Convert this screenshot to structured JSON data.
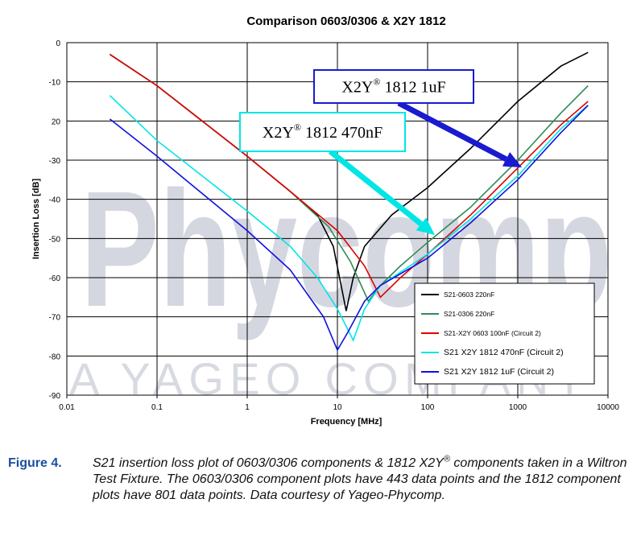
{
  "chart_data": {
    "type": "line",
    "title": "Comparison 0603/0306 &  X2Y 1812",
    "x_label": "Frequency [MHz]",
    "y_label": "Insertion Loss [dB]",
    "x_scale": "log",
    "xlim": [
      0.01,
      10000
    ],
    "xticks": [
      0.01,
      0.1,
      1,
      10,
      100,
      1000,
      10000
    ],
    "ylim": [
      -90,
      0
    ],
    "yticks": [
      0,
      -10,
      {
        "value": -20,
        "label": "20"
      },
      -30,
      -40,
      -50,
      -60,
      -70,
      -80,
      -90
    ],
    "grid": true,
    "legend_position": "lower right",
    "watermark_text": "Phycomp",
    "watermark_subtext": "A YAGEO COMPANY",
    "series": [
      {
        "name": "S21-0603 220nF",
        "color": "#000000",
        "x": [
          0.03,
          0.1,
          1,
          3,
          6,
          9,
          11,
          12.5,
          15,
          20,
          40,
          100,
          300,
          1000,
          3000,
          6000
        ],
        "values": [
          -3,
          -11,
          -29,
          -38,
          -44,
          -52,
          -62,
          -68.5,
          -60,
          -52,
          -44,
          -37,
          -27,
          -15,
          -6,
          -2.5
        ]
      },
      {
        "name": "S21-0306 220nF",
        "color": "#2e8b57",
        "x": [
          0.03,
          0.1,
          1,
          3,
          8,
          14,
          22,
          30,
          50,
          100,
          300,
          1000,
          3000,
          6000
        ],
        "values": [
          -3,
          -11,
          -29,
          -38,
          -47,
          -56,
          -66,
          -62,
          -57,
          -51,
          -42,
          -30,
          -18,
          -11
        ]
      },
      {
        "name": "S21-X2Y 0603 100nF (Circuit 2)",
        "color": "#e00000",
        "x": [
          0.03,
          0.1,
          1,
          3,
          10,
          20,
          30,
          50,
          100,
          300,
          1000,
          3000,
          6000
        ],
        "values": [
          -3,
          -11,
          -29,
          -38,
          -48,
          -57,
          -65,
          -60,
          -54,
          -44,
          -32,
          -21,
          -15
        ]
      },
      {
        "name": "S21 X2Y 1812 470nF (Circuit 2)",
        "color": "#00e5e5",
        "x": [
          0.03,
          0.1,
          1,
          3,
          6,
          10,
          15,
          20,
          30,
          100,
          300,
          1000,
          3000,
          6000
        ],
        "values": [
          -13.5,
          -25,
          -43,
          -52,
          -60,
          -68,
          -76,
          -68,
          -62,
          -54,
          -45,
          -34,
          -22,
          -16
        ]
      },
      {
        "name": "S21 X2Y 1812 1uF (Circuit 2)",
        "color": "#1010e0",
        "x": [
          0.03,
          0.1,
          1,
          3,
          7,
          10,
          13,
          20,
          30,
          100,
          300,
          1000,
          3000,
          6000
        ],
        "values": [
          -19.5,
          -29,
          -48,
          -58,
          -70,
          -78.5,
          -74,
          -66,
          -62,
          -55,
          -46,
          -35,
          -23,
          -16
        ]
      }
    ],
    "annotations": [
      {
        "prefix": "X2Y",
        "sup": "®",
        "suffix": " 1812 1uF"
      },
      {
        "prefix": "X2Y",
        "sup": "®",
        "suffix": " 1812 470nF"
      }
    ]
  },
  "caption": {
    "label": "Figure 4.",
    "text_before": "S21 insertion loss plot of 0603/0306 components & 1812 X2Y",
    "sup": "®",
    "text_after": " components taken in a Wiltron Test Fixture. The 0603/0306 component plots have 443 data points and the 1812 component plots have 801 data points. Data courtesy of Yageo-Phycomp."
  }
}
